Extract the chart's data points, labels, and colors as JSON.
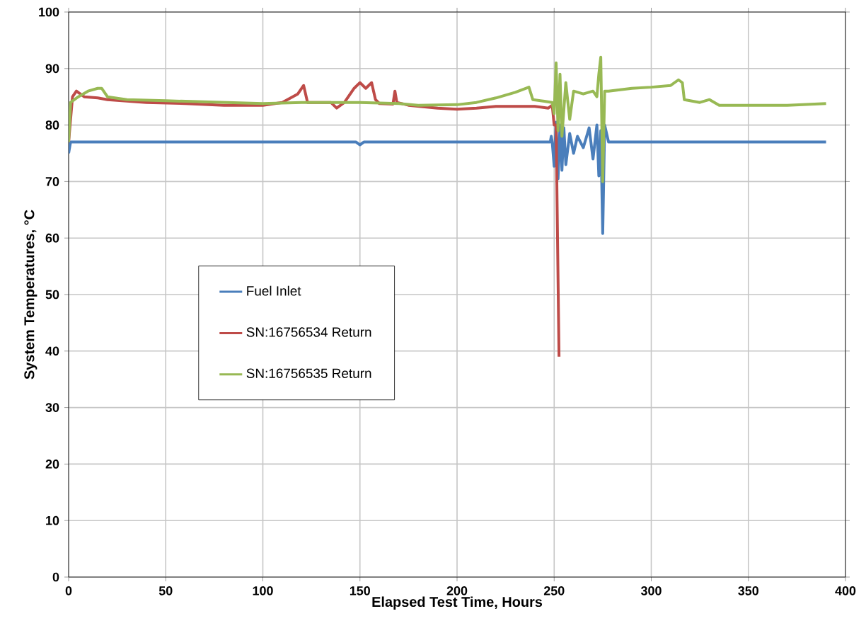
{
  "chart_data": {
    "type": "line",
    "xlabel": "Elapsed Test Time, Hours",
    "ylabel": "System Temperatures, °C",
    "xlim": [
      0,
      400
    ],
    "xticks": [
      0,
      50,
      100,
      150,
      200,
      250,
      300,
      350,
      400
    ],
    "ylim": [
      0,
      100
    ],
    "yticks": [
      0,
      10,
      20,
      30,
      40,
      50,
      60,
      70,
      80,
      90,
      100
    ],
    "grid": true,
    "legend": "left",
    "marker": "none",
    "line_style": "solid",
    "series": [
      {
        "name": "Fuel Inlet",
        "color": "#4a7ebb",
        "x": [
          0,
          1,
          50,
          100,
          148,
          150,
          152,
          200,
          248,
          248.5,
          249,
          250,
          251,
          252,
          253,
          254,
          255,
          256,
          258,
          260,
          262,
          265,
          268,
          270,
          272,
          273,
          274,
          275,
          276,
          278,
          300,
          350,
          390
        ],
        "values": [
          75,
          77,
          77,
          77,
          77,
          76.5,
          77,
          77,
          77,
          78,
          77,
          72.7,
          80.5,
          70.5,
          80,
          72,
          79.5,
          73,
          78.5,
          75,
          78,
          76,
          79.5,
          74,
          80,
          71,
          79,
          60.8,
          80,
          77,
          77,
          77,
          77
        ]
      },
      {
        "name": "SN:16756534 Return",
        "color": "#be4b48",
        "x": [
          0,
          2,
          4,
          8,
          15,
          20,
          40,
          60,
          80,
          100,
          110,
          118,
          121,
          123,
          135,
          138,
          142,
          147,
          150,
          153,
          156,
          158,
          160,
          167,
          168,
          169,
          175,
          190,
          200,
          210,
          220,
          240,
          247,
          249,
          250,
          251,
          252.5
        ],
        "values": [
          77,
          85,
          86,
          85,
          84.8,
          84.5,
          84,
          83.8,
          83.5,
          83.5,
          84,
          85.5,
          87,
          84,
          84,
          83,
          84,
          86.5,
          87.5,
          86.5,
          87.5,
          84.5,
          83.8,
          83.7,
          86,
          84,
          83.5,
          83,
          82.8,
          83,
          83.3,
          83.3,
          83,
          83.5,
          80,
          80,
          39
        ]
      },
      {
        "name": "SN:16756535 Return",
        "color": "#98b954",
        "x": [
          0,
          1,
          5,
          10,
          15,
          17,
          20,
          30,
          50,
          100,
          120,
          150,
          170,
          180,
          200,
          210,
          220,
          230,
          237,
          239,
          245,
          249,
          250,
          251,
          252,
          253,
          254,
          256,
          258,
          260,
          265,
          270,
          272,
          273,
          274,
          275,
          276,
          278,
          290,
          300,
          310,
          314,
          316,
          317,
          325,
          330,
          335,
          350,
          370,
          390
        ],
        "values": [
          77,
          84,
          85,
          86,
          86.5,
          86.5,
          85,
          84.5,
          84.3,
          83.8,
          84,
          84,
          83.8,
          83.5,
          83.6,
          84,
          84.8,
          85.8,
          86.7,
          84.5,
          84.2,
          84,
          82,
          91,
          79,
          89,
          78,
          87.5,
          81,
          86,
          85.5,
          86,
          85,
          89,
          92,
          70,
          86,
          86,
          86.5,
          86.7,
          87,
          88,
          87.5,
          84.5,
          84,
          84.5,
          83.5,
          83.5,
          83.5,
          83.8
        ]
      }
    ]
  }
}
